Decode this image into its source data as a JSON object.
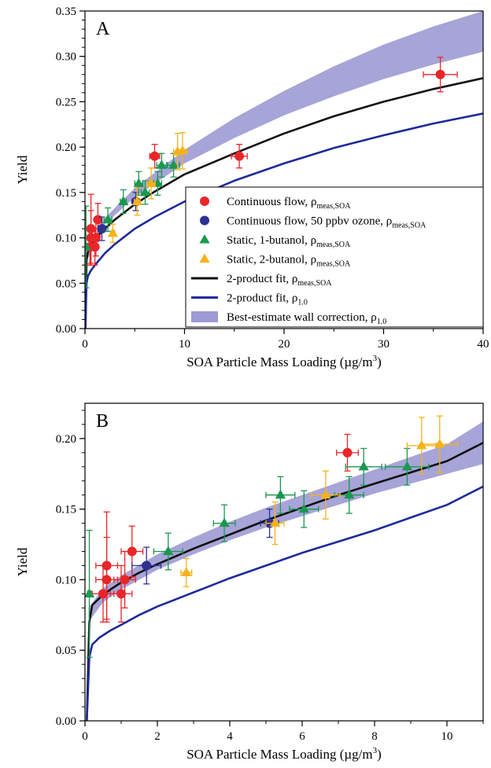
{
  "colors": {
    "continuous_flow": "#e8262a",
    "ozone": "#2e3192",
    "static_1_butanol": "#1a9850",
    "static_2_butanol": "#f5b21b",
    "fit_meas": "#111111",
    "fit_1_0": "#1f2a99",
    "wall_band": "#9d9ad4"
  },
  "legend": {
    "entries": [
      {
        "kind": "circle",
        "color": "#e8262a",
        "text": "Continuous flow, ρ",
        "sub": "meas,SOA"
      },
      {
        "kind": "circle",
        "color": "#2e3192",
        "text": "Continuous flow, 50 ppbv ozone, ρ",
        "sub": "meas,SOA"
      },
      {
        "kind": "triangle",
        "color": "#1a9850",
        "text": "Static, 1-butanol, ρ",
        "sub": "meas,SOA"
      },
      {
        "kind": "triangle",
        "color": "#f5b21b",
        "text": "Static, 2-butanol, ρ",
        "sub": "meas,SOA"
      },
      {
        "kind": "line",
        "color": "#111111",
        "text": "2-product fit, ρ",
        "sub": "meas,SOA"
      },
      {
        "kind": "line",
        "color": "#1f2a99",
        "text": "2-product fit, ρ",
        "sub": "1.0"
      },
      {
        "kind": "band",
        "color": "#9d9ad4",
        "text": "Best-estimate wall correction, ρ",
        "sub": "1.0"
      }
    ]
  },
  "chart_data": [
    {
      "type": "scatter",
      "panel_label": "A",
      "xlabel": "SOA Particle Mass Loading (µg/m",
      "xlabel_sup": "3",
      "xlabel_end": ")",
      "ylabel": "Yield",
      "xlim": [
        0,
        40
      ],
      "ylim": [
        0,
        0.35
      ],
      "xticks": [
        0,
        10,
        20,
        30,
        40
      ],
      "yticks": [
        0.0,
        0.05,
        0.1,
        0.15,
        0.2,
        0.25,
        0.3,
        0.35
      ],
      "ytick_labels": [
        "0.00",
        "0.05",
        "0.10",
        "0.15",
        "0.20",
        "0.25",
        "0.30",
        "0.35"
      ],
      "legend_position": "lower-right",
      "band": {
        "x": [
          0.2,
          2,
          5,
          10,
          15,
          20,
          25,
          30,
          35,
          40
        ],
        "low": [
          0.075,
          0.115,
          0.145,
          0.182,
          0.21,
          0.235,
          0.256,
          0.275,
          0.291,
          0.305
        ],
        "high": [
          0.085,
          0.122,
          0.155,
          0.197,
          0.232,
          0.262,
          0.289,
          0.313,
          0.333,
          0.35
        ]
      },
      "fits": [
        {
          "color": "#111111",
          "x": [
            0.05,
            0.15,
            0.3,
            0.6,
            1,
            2,
            3,
            5,
            7,
            10,
            15,
            20,
            25,
            30,
            35,
            40
          ],
          "y": [
            0.0,
            0.075,
            0.085,
            0.092,
            0.099,
            0.11,
            0.12,
            0.137,
            0.151,
            0.17,
            0.193,
            0.215,
            0.234,
            0.25,
            0.264,
            0.276
          ]
        },
        {
          "color": "#1f2a99",
          "x": [
            0.05,
            0.15,
            0.3,
            0.6,
            1,
            2,
            3,
            5,
            7,
            10,
            15,
            20,
            25,
            30,
            35,
            40
          ],
          "y": [
            0.0,
            0.05,
            0.058,
            0.064,
            0.07,
            0.083,
            0.093,
            0.11,
            0.123,
            0.14,
            0.163,
            0.182,
            0.199,
            0.213,
            0.226,
            0.237
          ]
        }
      ],
      "series": [
        {
          "kind": "circle",
          "color": "#e8262a",
          "points": [
            {
              "x": 0.5,
              "y": 0.09,
              "xerr": 0.3,
              "yerr": 0.02
            },
            {
              "x": 0.6,
              "y": 0.1,
              "xerr": 0.3,
              "yerr": 0.03
            },
            {
              "x": 0.6,
              "y": 0.11,
              "xerr": 0.3,
              "yerr": 0.038
            },
            {
              "x": 1.0,
              "y": 0.09,
              "xerr": 0.3,
              "yerr": 0.02
            },
            {
              "x": 1.1,
              "y": 0.1,
              "xerr": 0.3,
              "yerr": 0.02
            },
            {
              "x": 1.3,
              "y": 0.12,
              "xerr": 0.3,
              "yerr": 0.018
            },
            {
              "x": 7.0,
              "y": 0.19,
              "xerr": 0.5,
              "yerr": 0.013
            },
            {
              "x": 15.5,
              "y": 0.19,
              "xerr": 0.8,
              "yerr": 0.013
            },
            {
              "x": 35.7,
              "y": 0.28,
              "xerr": 1.7,
              "yerr": 0.019
            }
          ]
        },
        {
          "kind": "circle",
          "color": "#2e3192",
          "points": [
            {
              "x": 1.7,
              "y": 0.11,
              "xerr": 0.4,
              "yerr": 0.013
            },
            {
              "x": 5.1,
              "y": 0.14,
              "xerr": 0.3,
              "yerr": 0.01
            }
          ]
        },
        {
          "kind": "triangle",
          "color": "#1a9850",
          "points": [
            {
              "x": 0.1,
              "y": 0.09,
              "xerr": 0.05,
              "yerr": 0.045
            },
            {
              "x": 2.3,
              "y": 0.12,
              "xerr": 0.4,
              "yerr": 0.013
            },
            {
              "x": 3.85,
              "y": 0.14,
              "xerr": 0.3,
              "yerr": 0.013
            },
            {
              "x": 5.4,
              "y": 0.16,
              "xerr": 0.4,
              "yerr": 0.013
            },
            {
              "x": 6.05,
              "y": 0.15,
              "xerr": 0.4,
              "yerr": 0.013
            },
            {
              "x": 7.3,
              "y": 0.16,
              "xerr": 0.4,
              "yerr": 0.013
            },
            {
              "x": 7.7,
              "y": 0.18,
              "xerr": 0.5,
              "yerr": 0.013
            },
            {
              "x": 8.9,
              "y": 0.18,
              "xerr": 0.6,
              "yerr": 0.013
            }
          ]
        },
        {
          "kind": "triangle",
          "color": "#f5b21b",
          "points": [
            {
              "x": 2.8,
              "y": 0.105,
              "xerr": 0.2,
              "yerr": 0.01
            },
            {
              "x": 5.25,
              "y": 0.14,
              "xerr": 0.3,
              "yerr": 0.015
            },
            {
              "x": 6.65,
              "y": 0.16,
              "xerr": 0.4,
              "yerr": 0.017
            },
            {
              "x": 9.3,
              "y": 0.195,
              "xerr": 0.4,
              "yerr": 0.02
            },
            {
              "x": 9.8,
              "y": 0.196,
              "xerr": 0.5,
              "yerr": 0.02
            }
          ]
        }
      ]
    },
    {
      "type": "scatter",
      "panel_label": "B",
      "xlabel": "SOA Particle Mass Loading (µg/m",
      "xlabel_sup": "3",
      "xlabel_end": ")",
      "ylabel": "Yield",
      "xlim": [
        0,
        11
      ],
      "ylim": [
        0,
        0.225
      ],
      "xticks": [
        0,
        2,
        4,
        6,
        8,
        10
      ],
      "yticks": [
        0.0,
        0.05,
        0.1,
        0.15,
        0.2
      ],
      "ytick_labels": [
        "0.00",
        "0.05",
        "0.10",
        "0.15",
        "0.20"
      ],
      "band": {
        "x": [
          0.1,
          0.5,
          1,
          2,
          3,
          4,
          5,
          6,
          7,
          8,
          9,
          10,
          11
        ],
        "low": [
          0.07,
          0.084,
          0.093,
          0.107,
          0.118,
          0.128,
          0.137,
          0.145,
          0.153,
          0.161,
          0.168,
          0.175,
          0.182
        ],
        "high": [
          0.08,
          0.094,
          0.103,
          0.118,
          0.13,
          0.141,
          0.151,
          0.16,
          0.169,
          0.178,
          0.187,
          0.196,
          0.212
        ]
      },
      "fits": [
        {
          "color": "#111111",
          "x": [
            0.05,
            0.12,
            0.2,
            0.4,
            0.7,
            1,
            1.5,
            2,
            3,
            4,
            5,
            6,
            7,
            8,
            9,
            10,
            11
          ],
          "y": [
            0.0,
            0.07,
            0.082,
            0.087,
            0.093,
            0.098,
            0.105,
            0.111,
            0.122,
            0.132,
            0.142,
            0.151,
            0.16,
            0.168,
            0.176,
            0.184,
            0.197
          ]
        },
        {
          "color": "#1f2a99",
          "x": [
            0.05,
            0.12,
            0.2,
            0.4,
            0.7,
            1,
            1.5,
            2,
            3,
            4,
            5,
            6,
            7,
            8,
            9,
            10,
            11
          ],
          "y": [
            0.0,
            0.045,
            0.054,
            0.059,
            0.064,
            0.068,
            0.075,
            0.081,
            0.091,
            0.101,
            0.11,
            0.119,
            0.127,
            0.135,
            0.144,
            0.153,
            0.166
          ]
        }
      ],
      "series": [
        {
          "kind": "circle",
          "color": "#e8262a",
          "points": [
            {
              "x": 0.5,
              "y": 0.09,
              "xerr": 0.3,
              "yerr": 0.02
            },
            {
              "x": 0.6,
              "y": 0.1,
              "xerr": 0.3,
              "yerr": 0.03
            },
            {
              "x": 0.6,
              "y": 0.11,
              "xerr": 0.3,
              "yerr": 0.038
            },
            {
              "x": 1.0,
              "y": 0.09,
              "xerr": 0.3,
              "yerr": 0.02
            },
            {
              "x": 1.1,
              "y": 0.1,
              "xerr": 0.3,
              "yerr": 0.02
            },
            {
              "x": 1.3,
              "y": 0.12,
              "xerr": 0.3,
              "yerr": 0.018
            },
            {
              "x": 7.25,
              "y": 0.19,
              "xerr": 0.3,
              "yerr": 0.013
            }
          ]
        },
        {
          "kind": "circle",
          "color": "#2e3192",
          "points": [
            {
              "x": 1.7,
              "y": 0.11,
              "xerr": 0.4,
              "yerr": 0.013
            },
            {
              "x": 5.1,
              "y": 0.14,
              "xerr": 0.25,
              "yerr": 0.01
            }
          ]
        },
        {
          "kind": "triangle",
          "color": "#1a9850",
          "points": [
            {
              "x": 0.12,
              "y": 0.09,
              "xerr": 0.05,
              "yerr": 0.045
            },
            {
              "x": 2.3,
              "y": 0.12,
              "xerr": 0.4,
              "yerr": 0.013
            },
            {
              "x": 3.85,
              "y": 0.14,
              "xerr": 0.3,
              "yerr": 0.013
            },
            {
              "x": 5.4,
              "y": 0.16,
              "xerr": 0.4,
              "yerr": 0.013
            },
            {
              "x": 6.05,
              "y": 0.15,
              "xerr": 0.4,
              "yerr": 0.013
            },
            {
              "x": 7.3,
              "y": 0.16,
              "xerr": 0.4,
              "yerr": 0.013
            },
            {
              "x": 7.7,
              "y": 0.18,
              "xerr": 0.5,
              "yerr": 0.013
            },
            {
              "x": 8.9,
              "y": 0.18,
              "xerr": 0.6,
              "yerr": 0.013
            }
          ]
        },
        {
          "kind": "triangle",
          "color": "#f5b21b",
          "points": [
            {
              "x": 2.8,
              "y": 0.105,
              "xerr": 0.15,
              "yerr": 0.01
            },
            {
              "x": 5.25,
              "y": 0.14,
              "xerr": 0.25,
              "yerr": 0.015
            },
            {
              "x": 6.65,
              "y": 0.16,
              "xerr": 0.4,
              "yerr": 0.017
            },
            {
              "x": 9.3,
              "y": 0.195,
              "xerr": 0.4,
              "yerr": 0.02
            },
            {
              "x": 9.8,
              "y": 0.196,
              "xerr": 0.5,
              "yerr": 0.02
            }
          ]
        }
      ]
    }
  ]
}
